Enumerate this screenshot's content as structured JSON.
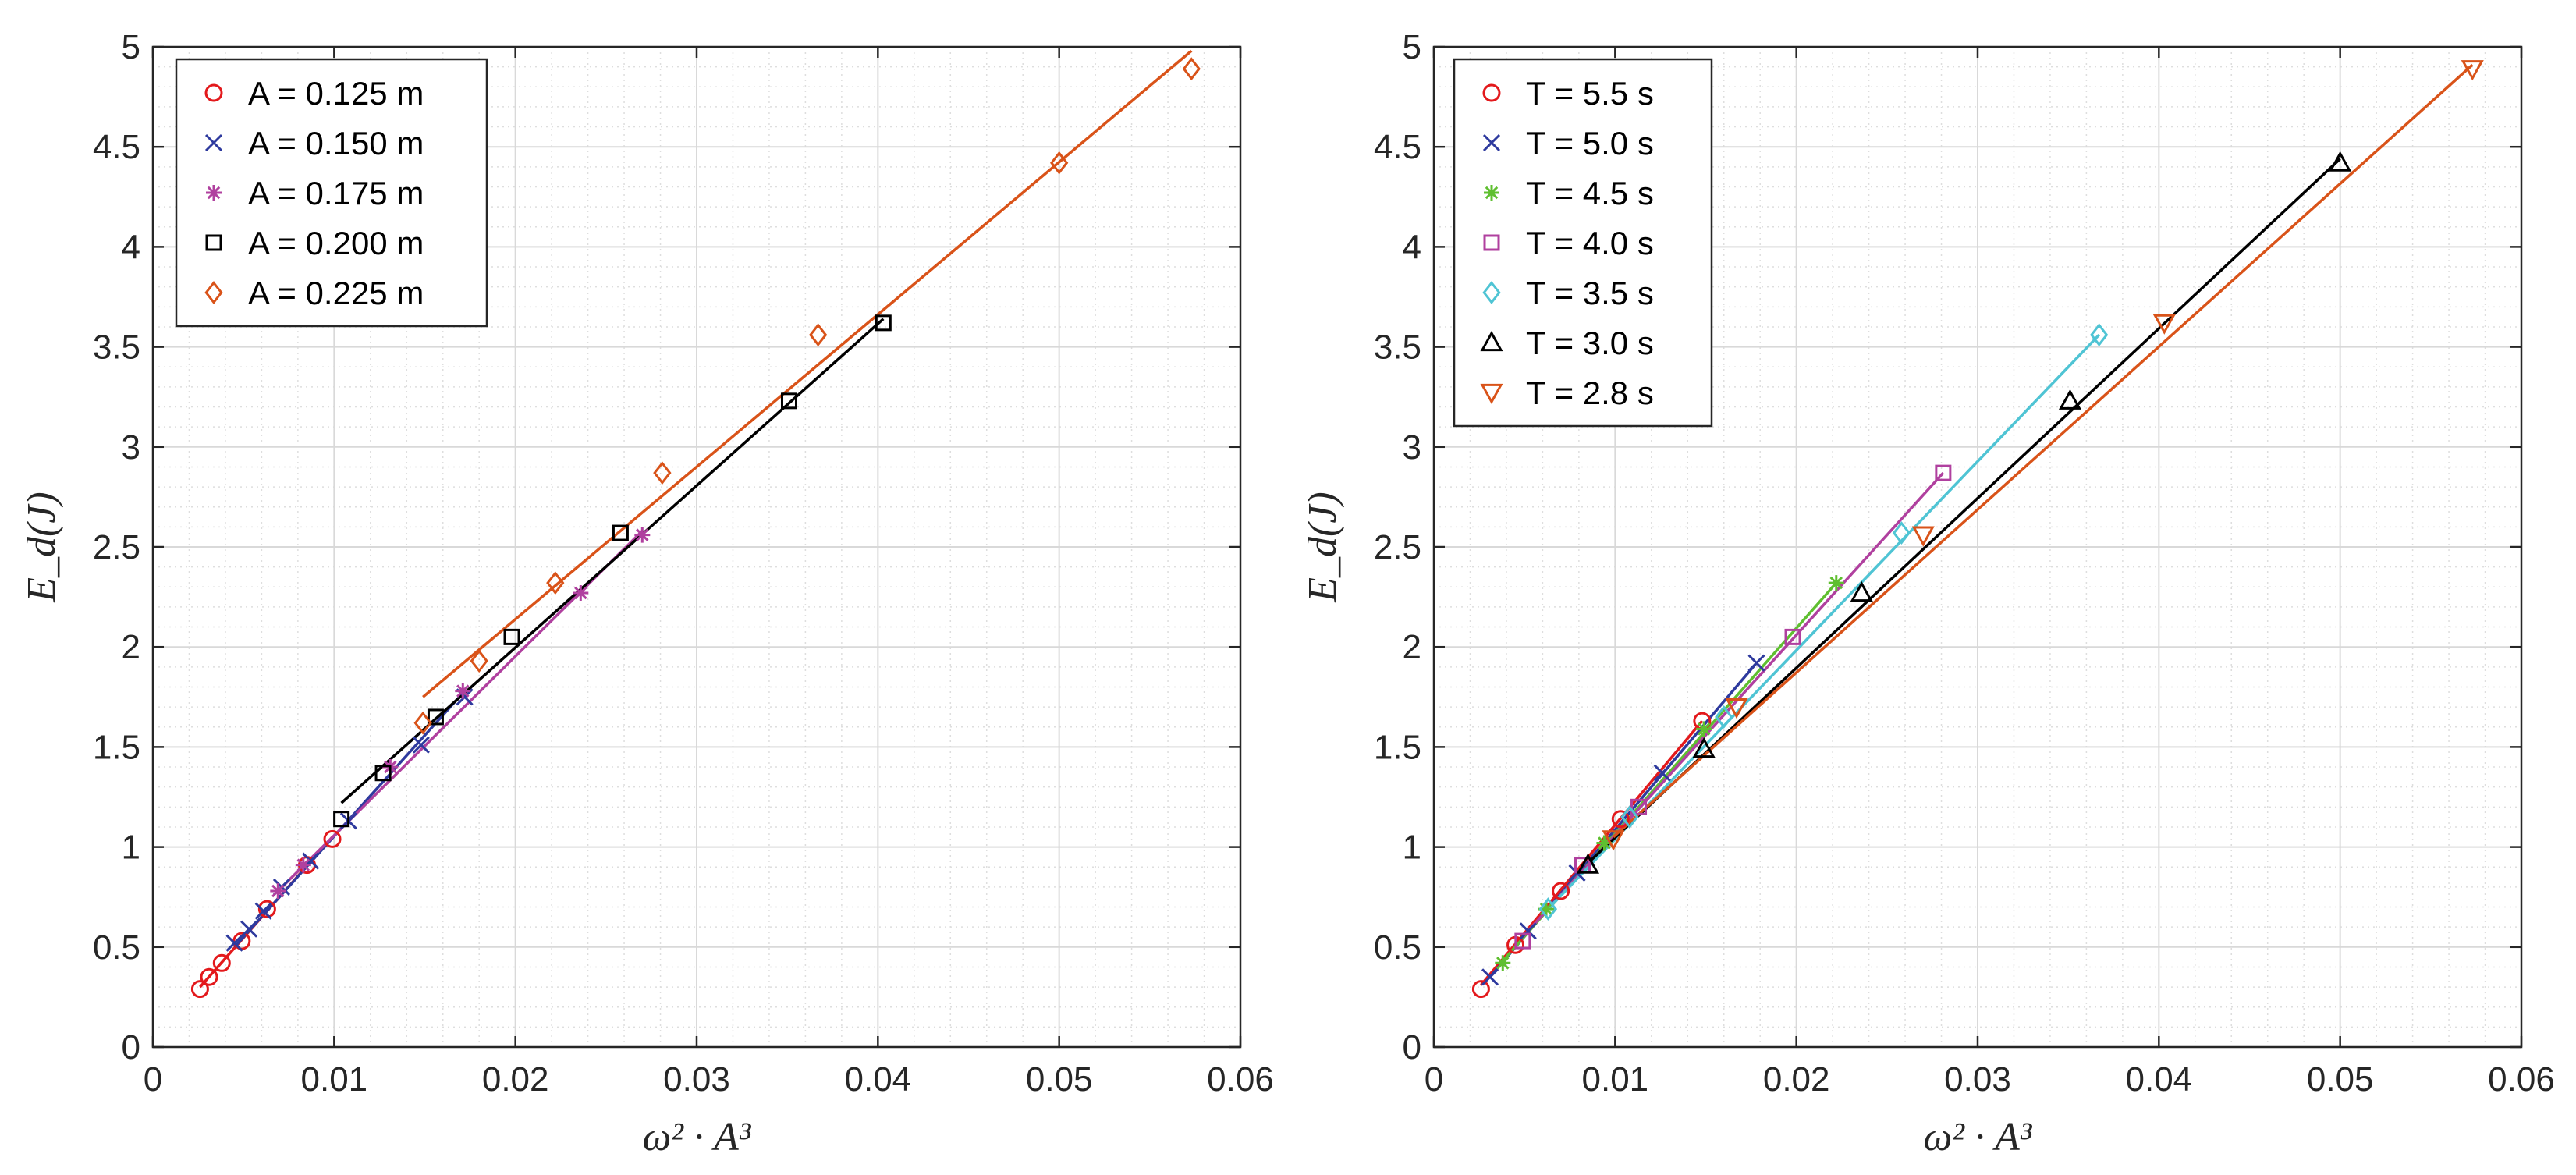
{
  "chart_data": [
    {
      "type": "scatter",
      "xlabel": "ω² · A³",
      "ylabel": "E_d(J)",
      "xlim": [
        0,
        0.06
      ],
      "ylim": [
        0,
        5
      ],
      "x_ticks": [
        "0",
        "0.01",
        "0.02",
        "0.03",
        "0.04",
        "0.05",
        "0.06"
      ],
      "y_ticks": [
        "0",
        "0.5",
        "1",
        "1.5",
        "2",
        "2.5",
        "3",
        "3.5",
        "4",
        "4.5",
        "5"
      ],
      "grid": true,
      "minor_grid": true,
      "legend_position": "top-left",
      "series": [
        {
          "name": "A = 0.125 m",
          "marker": "circle",
          "color": "#e3191c",
          "points": [
            [
              0.0026,
              0.29
            ],
            [
              0.0031,
              0.35
            ],
            [
              0.0038,
              0.42
            ],
            [
              0.0049,
              0.53
            ],
            [
              0.0063,
              0.69
            ],
            [
              0.0085,
              0.91
            ],
            [
              0.0099,
              1.04
            ]
          ],
          "fit": [
            [
              0.0026,
              0.3
            ],
            [
              0.0099,
              1.05
            ]
          ]
        },
        {
          "name": "A = 0.150 m",
          "marker": "x",
          "color": "#2e3a9e",
          "points": [
            [
              0.0045,
              0.52
            ],
            [
              0.0053,
              0.59
            ],
            [
              0.0061,
              0.68
            ],
            [
              0.0071,
              0.8
            ],
            [
              0.0087,
              0.93
            ],
            [
              0.0108,
              1.13
            ],
            [
              0.0148,
              1.51
            ],
            [
              0.0172,
              1.75
            ]
          ],
          "fit": [
            [
              0.0045,
              0.5
            ],
            [
              0.0172,
              1.78
            ]
          ]
        },
        {
          "name": "A = 0.175 m",
          "marker": "star",
          "color": "#b0409f",
          "points": [
            [
              0.0069,
              0.78
            ],
            [
              0.0083,
              0.91
            ],
            [
              0.0131,
              1.4
            ],
            [
              0.0171,
              1.78
            ],
            [
              0.0236,
              2.27
            ],
            [
              0.027,
              2.56
            ]
          ],
          "fit": [
            [
              0.0069,
              0.78
            ],
            [
              0.027,
              2.58
            ]
          ]
        },
        {
          "name": "A = 0.200 m",
          "marker": "square",
          "color": "#000000",
          "points": [
            [
              0.0104,
              1.14
            ],
            [
              0.0127,
              1.37
            ],
            [
              0.0156,
              1.65
            ],
            [
              0.0198,
              2.05
            ],
            [
              0.0258,
              2.57
            ],
            [
              0.0351,
              3.23
            ],
            [
              0.0403,
              3.62
            ]
          ],
          "fit": [
            [
              0.0104,
              1.22
            ],
            [
              0.0403,
              3.64
            ]
          ]
        },
        {
          "name": "A = 0.225 m",
          "marker": "diamond",
          "color": "#d95319",
          "points": [
            [
              0.0149,
              1.62
            ],
            [
              0.018,
              1.93
            ],
            [
              0.0222,
              2.32
            ],
            [
              0.0281,
              2.87
            ],
            [
              0.0367,
              3.56
            ],
            [
              0.05,
              4.42
            ],
            [
              0.0573,
              4.89
            ]
          ],
          "fit": [
            [
              0.0149,
              1.75
            ],
            [
              0.0573,
              4.98
            ]
          ]
        }
      ]
    },
    {
      "type": "scatter",
      "xlabel": "ω² · A³",
      "ylabel": "E_d(J)",
      "xlim": [
        0,
        0.06
      ],
      "ylim": [
        0,
        5
      ],
      "x_ticks": [
        "0",
        "0.01",
        "0.02",
        "0.03",
        "0.04",
        "0.05",
        "0.06"
      ],
      "y_ticks": [
        "0",
        "0.5",
        "1",
        "1.5",
        "2",
        "2.5",
        "3",
        "3.5",
        "4",
        "4.5",
        "5"
      ],
      "grid": true,
      "minor_grid": true,
      "legend_position": "top-left",
      "series": [
        {
          "name": "T = 5.5 s",
          "marker": "circle",
          "color": "#e3191c",
          "points": [
            [
              0.0026,
              0.29
            ],
            [
              0.0045,
              0.51
            ],
            [
              0.007,
              0.78
            ],
            [
              0.0103,
              1.14
            ],
            [
              0.0148,
              1.63
            ]
          ],
          "fit": [
            [
              0.0026,
              0.31
            ],
            [
              0.0148,
              1.63
            ]
          ]
        },
        {
          "name": "T = 5.0 s",
          "marker": "x",
          "color": "#2e3a9e",
          "points": [
            [
              0.0031,
              0.35
            ],
            [
              0.0052,
              0.58
            ],
            [
              0.0079,
              0.87
            ],
            [
              0.0126,
              1.37
            ],
            [
              0.0178,
              1.92
            ]
          ],
          "fit": [
            [
              0.0031,
              0.35
            ],
            [
              0.0178,
              1.92
            ]
          ]
        },
        {
          "name": "T = 4.5 s",
          "marker": "star",
          "color": "#5fbf30",
          "points": [
            [
              0.0038,
              0.42
            ],
            [
              0.0062,
              0.69
            ],
            [
              0.0094,
              1.02
            ],
            [
              0.0149,
              1.59
            ],
            [
              0.0222,
              2.32
            ]
          ],
          "fit": [
            [
              0.0038,
              0.43
            ],
            [
              0.0222,
              2.32
            ]
          ]
        },
        {
          "name": "T = 4.0 s",
          "marker": "square",
          "color": "#b0409f",
          "points": [
            [
              0.0049,
              0.53
            ],
            [
              0.0082,
              0.91
            ],
            [
              0.0113,
              1.2
            ],
            [
              0.0198,
              2.05
            ],
            [
              0.0281,
              2.87
            ]
          ],
          "fit": [
            [
              0.0049,
              0.55
            ],
            [
              0.0281,
              2.87
            ]
          ]
        },
        {
          "name": "T = 3.5 s",
          "marker": "diamond",
          "color": "#4fc4d4",
          "points": [
            [
              0.0063,
              0.69
            ],
            [
              0.0108,
              1.15
            ],
            [
              0.016,
              1.65
            ],
            [
              0.0258,
              2.57
            ],
            [
              0.0367,
              3.56
            ]
          ],
          "fit": [
            [
              0.0063,
              0.69
            ],
            [
              0.0367,
              3.56
            ]
          ]
        },
        {
          "name": "T = 3.0 s",
          "marker": "triangle-up",
          "color": "#000000",
          "points": [
            [
              0.0085,
              0.91
            ],
            [
              0.0149,
              1.49
            ],
            [
              0.0236,
              2.27
            ],
            [
              0.0351,
              3.23
            ],
            [
              0.05,
              4.42
            ]
          ],
          "fit": [
            [
              0.0085,
              0.92
            ],
            [
              0.05,
              4.44
            ]
          ]
        },
        {
          "name": "T = 2.8 s",
          "marker": "triangle-down",
          "color": "#d95319",
          "points": [
            [
              0.0099,
              1.04
            ],
            [
              0.0167,
              1.7
            ],
            [
              0.027,
              2.56
            ],
            [
              0.0403,
              3.62
            ],
            [
              0.0573,
              4.89
            ]
          ],
          "fit": [
            [
              0.0099,
              1.05
            ],
            [
              0.0573,
              4.91
            ]
          ]
        }
      ]
    }
  ]
}
